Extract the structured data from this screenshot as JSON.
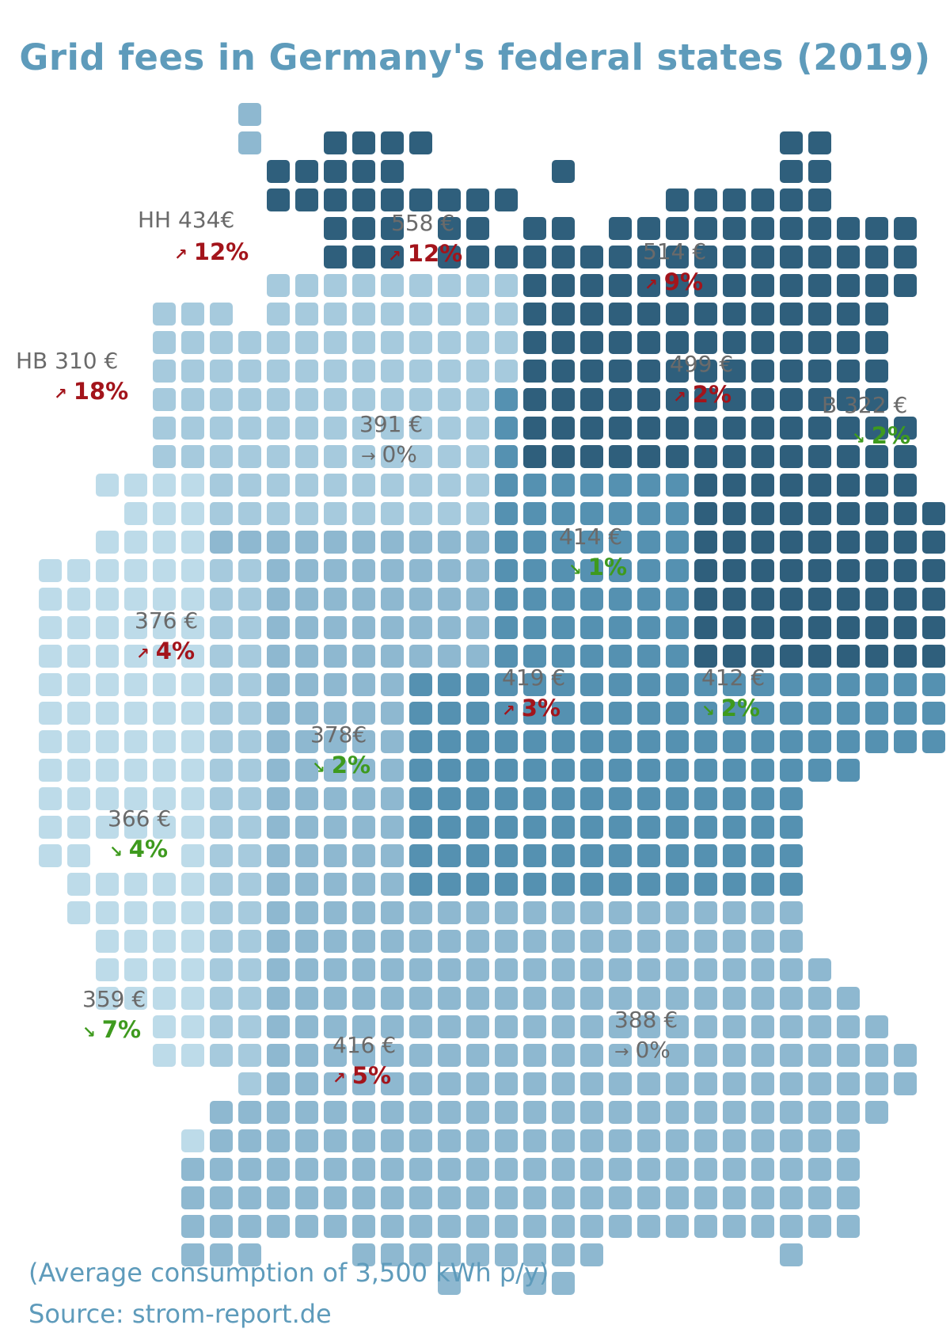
{
  "title": "Grid fees in Germany's federal states (2019)",
  "colors": {
    "title": "#5e9bbb",
    "label_text": "#6a6a6a",
    "increase": "#a3141b",
    "decrease": "#3e9a1e",
    "unchanged": "#6a6a6a",
    "tile_shades": [
      "#bddbe9",
      "#a6cadd",
      "#8eb8d0",
      "#5591b1",
      "#2f5f7c"
    ]
  },
  "icons": {
    "increase": "arrow-up-right-icon",
    "decrease": "arrow-down-right-icon",
    "unchanged": "arrow-right-icon"
  },
  "states": [
    {
      "id": "hh",
      "fee_label": "HH 434€",
      "change_label": "12%",
      "direction": "increase"
    },
    {
      "id": "mv",
      "fee_label": "558 €",
      "change_label": "12%",
      "direction": "increase"
    },
    {
      "id": "bb",
      "fee_label": "514 €",
      "change_label": "9%",
      "direction": "increase"
    },
    {
      "id": "hb",
      "fee_label": "HB 310 €",
      "change_label": "18%",
      "direction": "increase"
    },
    {
      "id": "bb2",
      "fee_label": "499 €",
      "change_label": "2%",
      "direction": "increase"
    },
    {
      "id": "be",
      "fee_label": "B 322 €",
      "change_label": "2%",
      "direction": "decrease"
    },
    {
      "id": "ni",
      "fee_label": "391 €",
      "change_label": "0%",
      "direction": "unchanged"
    },
    {
      "id": "st",
      "fee_label": "414 €",
      "change_label": "1%",
      "direction": "decrease"
    },
    {
      "id": "nw",
      "fee_label": "376 €",
      "change_label": "4%",
      "direction": "increase"
    },
    {
      "id": "th",
      "fee_label": "419 €",
      "change_label": "3%",
      "direction": "increase"
    },
    {
      "id": "sn",
      "fee_label": "412 €",
      "change_label": "2%",
      "direction": "decrease"
    },
    {
      "id": "he",
      "fee_label": "378€",
      "change_label": "2%",
      "direction": "decrease"
    },
    {
      "id": "rp",
      "fee_label": "366 €",
      "change_label": "4%",
      "direction": "decrease"
    },
    {
      "id": "sl",
      "fee_label": "359 €",
      "change_label": "7%",
      "direction": "decrease"
    },
    {
      "id": "by",
      "fee_label": "388 €",
      "change_label": "0%",
      "direction": "unchanged"
    },
    {
      "id": "bw",
      "fee_label": "416 €",
      "change_label": "5%",
      "direction": "increase"
    }
  ],
  "footnote": "(Average consumption of 3,500 kWh p/y)",
  "source": "Source: strom-report.de"
}
